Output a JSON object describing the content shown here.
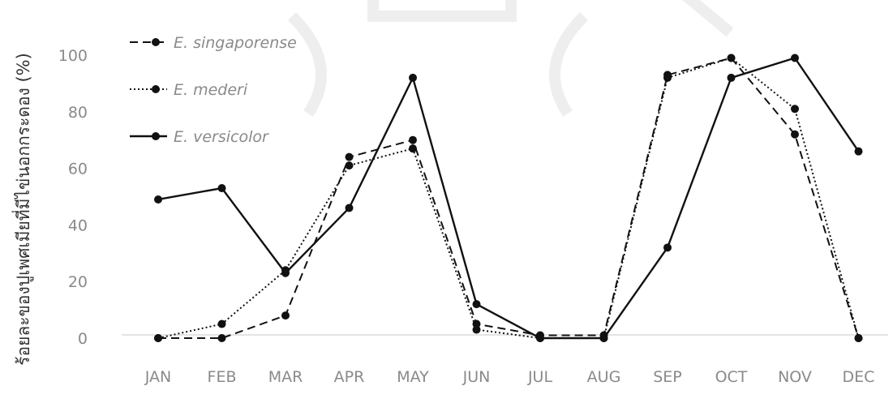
{
  "chart_data": {
    "type": "line",
    "title": "",
    "xlabel": "",
    "ylabel": "ร้อยละของปูเพศเมียที่มีไข่นอกกระดอง (%)",
    "categories": [
      "JAN",
      "FEB",
      "MAR",
      "APR",
      "MAY",
      "JUN",
      "JUL",
      "AUG",
      "SEP",
      "OCT",
      "NOV",
      "DEC"
    ],
    "ylim": [
      0,
      100
    ],
    "yticks": [
      0,
      20,
      40,
      60,
      80,
      100
    ],
    "grid": false,
    "legend_position": "top-left",
    "series": [
      {
        "name": "E. singaporense",
        "style": "dashed",
        "color": "#111111",
        "values": [
          0,
          0,
          8,
          64,
          70,
          5,
          1,
          1,
          93,
          99,
          72,
          0
        ]
      },
      {
        "name": "E. mederi",
        "style": "dotted",
        "color": "#111111",
        "values": [
          0,
          5,
          24,
          61,
          67,
          3,
          0,
          0,
          92,
          99,
          81,
          0
        ]
      },
      {
        "name": "E. versicolor",
        "style": "solid",
        "color": "#111111",
        "values": [
          49,
          53,
          23,
          46,
          92,
          12,
          0,
          0,
          32,
          92,
          99,
          66
        ]
      }
    ]
  }
}
